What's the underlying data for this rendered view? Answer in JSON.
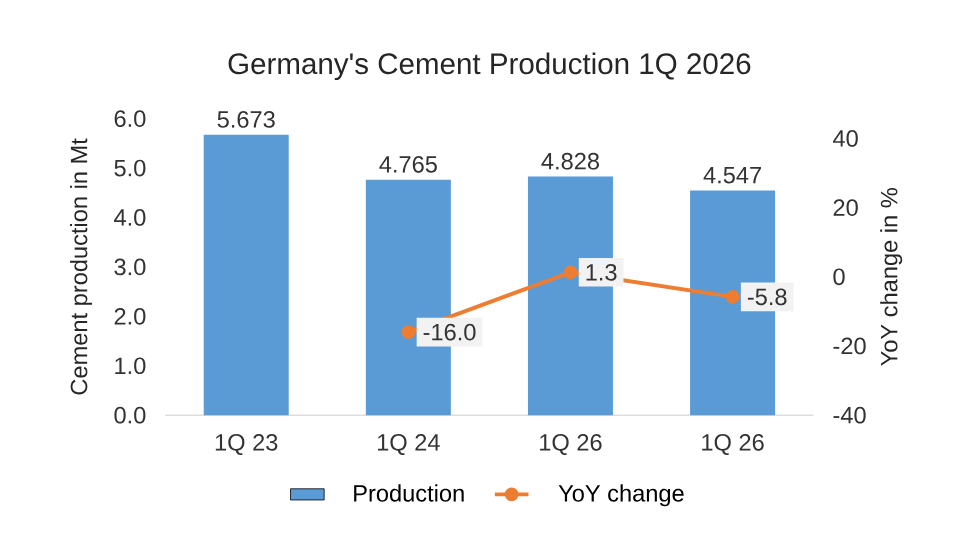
{
  "chart_data": {
    "type": "bar",
    "title": "Germany's Cement Production 1Q 2026",
    "ylabel": "Cement production  in Mt",
    "y2label": "YoY change in %",
    "categories": [
      "1Q 23",
      "1Q 24",
      "1Q 26",
      "1Q 26"
    ],
    "series": [
      {
        "name": "Production",
        "color": "#5b9bd5",
        "values": [
          5.673,
          4.765,
          4.828,
          4.547
        ],
        "value_labels": [
          "5.673",
          "4.765",
          "4.828",
          "4.547"
        ]
      },
      {
        "name": "YoY change",
        "type": "line",
        "axis": "y2",
        "color": "#ed7d31",
        "marker": "circle",
        "values": [
          null,
          -16.0,
          1.3,
          -5.8
        ],
        "value_labels": [
          null,
          "-16.0",
          "1.3",
          "-5.8"
        ]
      }
    ],
    "ylim": [
      0,
      6
    ],
    "yticks": [
      {
        "value": 0,
        "label": "0.0"
      },
      {
        "value": 1,
        "label": "1.0"
      },
      {
        "value": 2,
        "label": "2.0"
      },
      {
        "value": 3,
        "label": "3.0"
      },
      {
        "value": 4,
        "label": "4.0"
      },
      {
        "value": 5,
        "label": "5.0"
      },
      {
        "value": 6,
        "label": "6.0"
      }
    ],
    "y2lim": [
      -40,
      40
    ],
    "y2ticks": [
      -40,
      -20,
      0,
      20,
      40
    ],
    "legend": "bottom"
  }
}
